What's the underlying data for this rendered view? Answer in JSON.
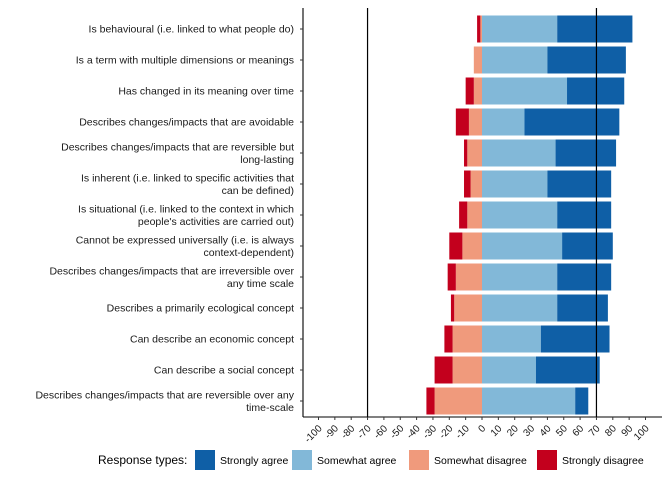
{
  "chart_data": {
    "type": "bar",
    "stacked": "diverging-horizontal",
    "categories": [
      [
        "Is behavioural (i.e. linked to what people do)"
      ],
      [
        "Is a term with multiple dimensions or meanings"
      ],
      [
        "Has changed in its meaning over time"
      ],
      [
        "Describes changes/impacts that are avoidable"
      ],
      [
        "Describes changes/impacts that are reversible but",
        "long-lasting"
      ],
      [
        "Is inherent (i.e. linked to specific activities that",
        "can be defined)"
      ],
      [
        "Is situational (i.e. linked to the context in which",
        "people's activities are carried out)"
      ],
      [
        "Cannot be expressed universally (i.e. is always",
        "context-dependent)"
      ],
      [
        "Describes changes/impacts that are irreversible over",
        "any time scale"
      ],
      [
        "Describes a primarily ecological concept"
      ],
      [
        "Can describe an economic concept"
      ],
      [
        "Can describe a social concept"
      ],
      [
        "Describes changes/impacts that are reversible over any",
        "time-scale"
      ]
    ],
    "series": [
      {
        "name": "Strongly agree",
        "color": "#0f5fa6",
        "side": "positive-outer",
        "values": [
          46,
          48,
          35,
          58,
          37,
          39,
          33,
          31,
          33,
          31,
          42,
          39,
          8
        ]
      },
      {
        "name": "Somewhat agree",
        "color": "#82b8d8",
        "side": "positive-inner",
        "values": [
          46,
          40,
          52,
          26,
          45,
          40,
          46,
          49,
          46,
          46,
          36,
          33,
          57
        ]
      },
      {
        "name": "Somewhat disagree",
        "color": "#f09a7c",
        "side": "negative-inner",
        "values": [
          -1,
          -5,
          -5,
          -8,
          -9,
          -7,
          -9,
          -12,
          -16,
          -17,
          -18,
          -18,
          -29
        ]
      },
      {
        "name": "Strongly disagree",
        "color": "#c3001d",
        "side": "negative-outer",
        "values": [
          -2,
          0,
          -5,
          -8,
          -2,
          -4,
          -5,
          -8,
          -5,
          -2,
          -5,
          -11,
          -5
        ]
      }
    ],
    "xlim": [
      -100,
      100
    ],
    "xticks": [
      -100,
      -90,
      -80,
      -70,
      -60,
      -50,
      -40,
      -30,
      -20,
      -10,
      0,
      10,
      20,
      30,
      40,
      50,
      60,
      70,
      80,
      90,
      100
    ],
    "reference_lines": [
      -70,
      70
    ],
    "legend": {
      "title": "Response types:",
      "position": "bottom"
    },
    "grid": false,
    "xlabel": "",
    "ylabel": ""
  }
}
